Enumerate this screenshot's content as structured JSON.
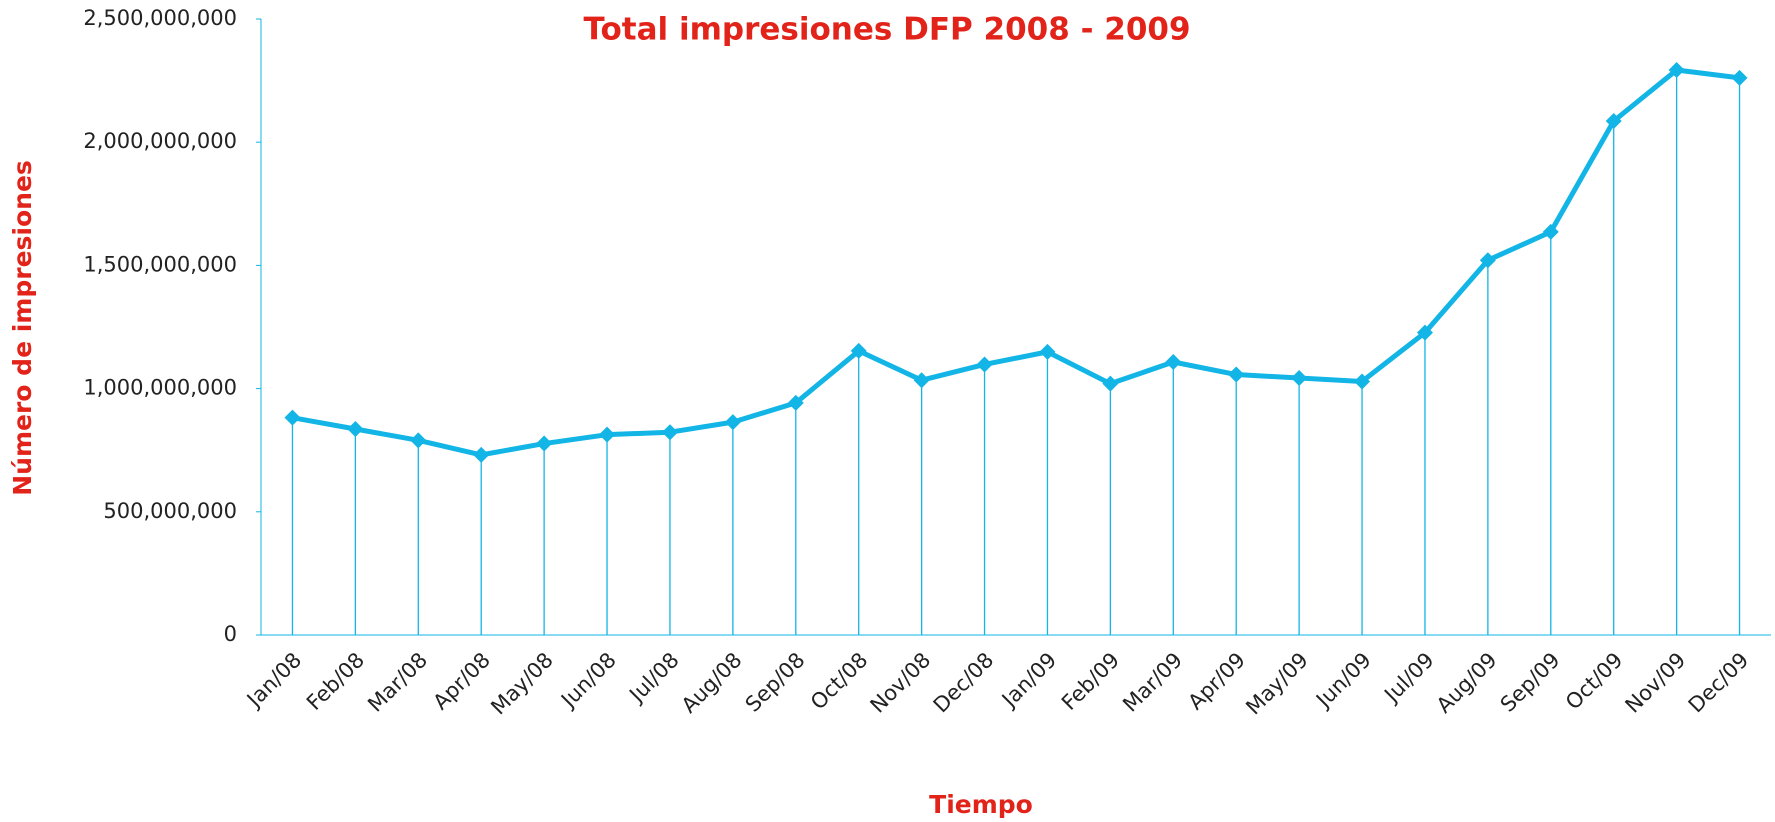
{
  "chart_data": {
    "type": "line",
    "title": "Total impresiones DFP 2008 - 2009",
    "x_label": "Tiempo",
    "y_label": "Número de impresiones",
    "categories": [
      "Jan/08",
      "Feb/08",
      "Mar/08",
      "Apr/08",
      "May/08",
      "Jun/08",
      "Jul/08",
      "Aug/08",
      "Sep/08",
      "Oct/08",
      "Nov/08",
      "Dec/08",
      "Jan/09",
      "Feb/09",
      "Mar/09",
      "Apr/09",
      "May/09",
      "Jun/09",
      "Jul/09",
      "Aug/09",
      "Sep/09",
      "Oct/09",
      "Nov/09",
      "Dec/09"
    ],
    "values": [
      882000000,
      836000000,
      790000000,
      731000000,
      777000000,
      813000000,
      823000000,
      864000000,
      942000000,
      1153000000,
      1034000000,
      1098000000,
      1149000000,
      1020000000,
      1108000000,
      1057000000,
      1043000000,
      1029000000,
      1227000000,
      1521000000,
      1636000000,
      2086000000,
      2293000000,
      2261000000
    ],
    "color": "#12b5e6",
    "drop_lines": true,
    "ylim": [
      0,
      2500000000
    ],
    "yticks": [
      0,
      {
        "value": 500000000,
        "label": "500,000,000"
      },
      {
        "value": 1000000000,
        "label": "1,000,000,000"
      },
      {
        "value": 1500000000,
        "label": "1,500,000,000"
      },
      {
        "value": 2000000000,
        "label": "2,000,000,000"
      },
      {
        "value": 2500000000,
        "label": "2,500,000,000"
      }
    ],
    "grid": false
  }
}
